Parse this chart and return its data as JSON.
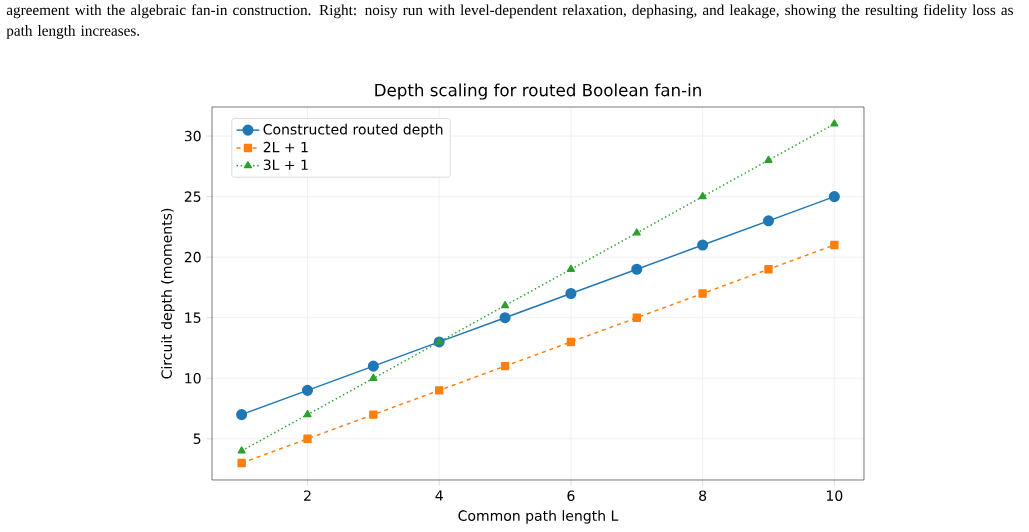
{
  "chart_data": {
    "type": "line",
    "title": "Depth scaling for routed Boolean fan-in",
    "xlabel": "Common path length L",
    "ylabel": "Circuit depth (moments)",
    "annotations": [
      "agreement with the algebraic fan-in construction. Right: noisy run with level-dependent relaxation, dephasing, and leakage, showing the resulting fidelity loss as path length increases."
    ],
    "x": [
      1,
      2,
      3,
      4,
      5,
      6,
      7,
      8,
      9,
      10
    ],
    "series": [
      {
        "name": "Constructed routed depth",
        "color": "#1f77b4",
        "marker": "circle",
        "line_style": "solid",
        "values": [
          7,
          9,
          11,
          13,
          15,
          17,
          19,
          21,
          23,
          25
        ]
      },
      {
        "name": "2L + 1",
        "color": "#ff7f0e",
        "marker": "square",
        "line_style": "dashed",
        "values": [
          3,
          5,
          7,
          9,
          11,
          13,
          15,
          17,
          19,
          21
        ]
      },
      {
        "name": "3L + 1",
        "color": "#2ca02c",
        "marker": "triangle",
        "line_style": "dotted",
        "values": [
          4,
          7,
          10,
          13,
          16,
          19,
          22,
          25,
          28,
          31
        ]
      }
    ],
    "xlim": [
      0.55,
      10.45
    ],
    "ylim": [
      1.6,
      32.4
    ],
    "xticks": [
      2,
      4,
      6,
      8,
      10
    ],
    "yticks": [
      5,
      10,
      15,
      20,
      25,
      30
    ],
    "grid": true,
    "legend": "top left"
  }
}
